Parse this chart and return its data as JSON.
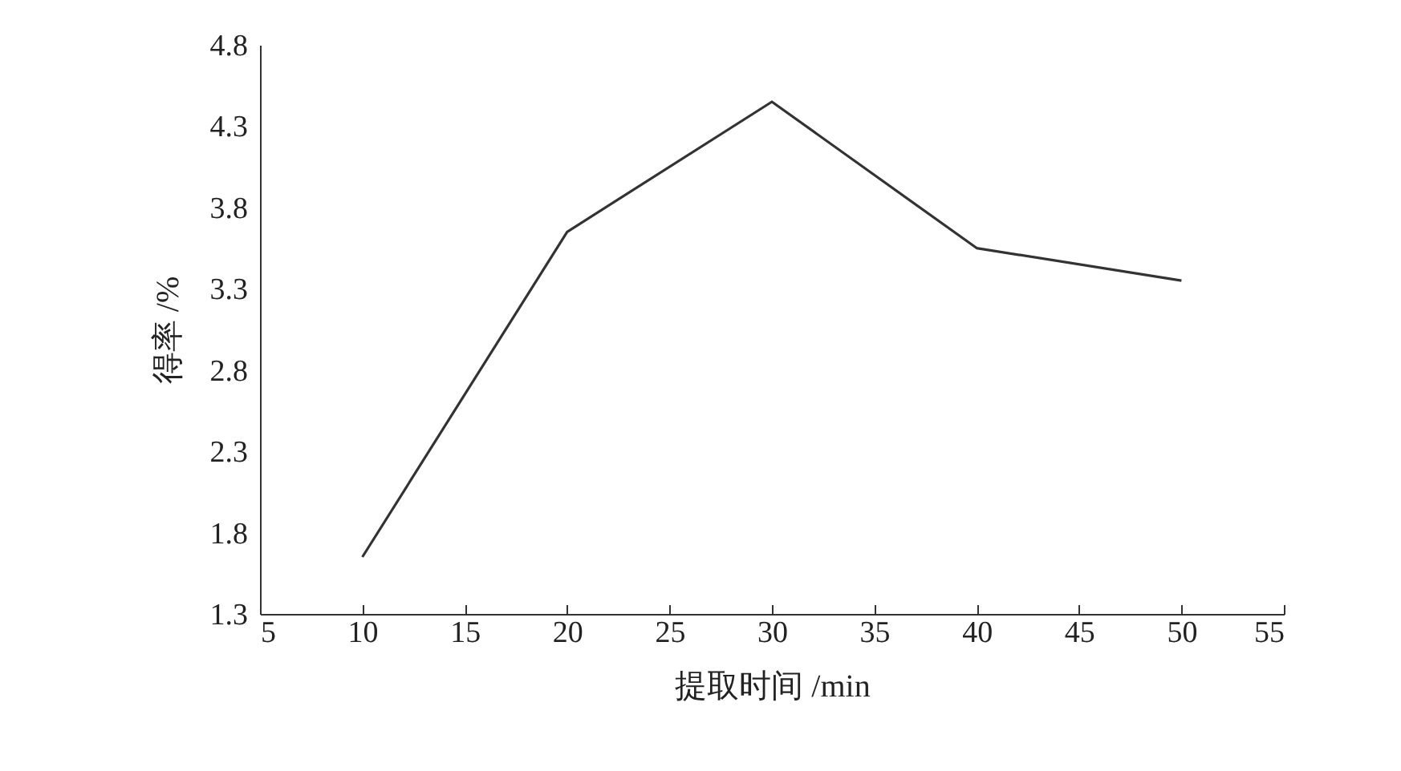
{
  "chart_data": {
    "type": "line",
    "xlabel": "提取时间 /min",
    "ylabel": "得率 /%",
    "x": [
      10,
      20,
      30,
      40,
      50
    ],
    "series": [
      {
        "color": "#333333",
        "values": [
          1.65,
          3.65,
          4.45,
          3.55,
          3.35
        ]
      }
    ],
    "xlim": [
      5,
      55
    ],
    "xticks": [
      5,
      10,
      15,
      20,
      25,
      30,
      35,
      40,
      45,
      50,
      55
    ],
    "ylim": [
      1.3,
      4.8
    ],
    "yticks": [
      1.3,
      1.8,
      2.3,
      2.8,
      3.3,
      3.8,
      4.3,
      4.8
    ],
    "grid": false,
    "marker": "none",
    "line_style": "solid"
  }
}
